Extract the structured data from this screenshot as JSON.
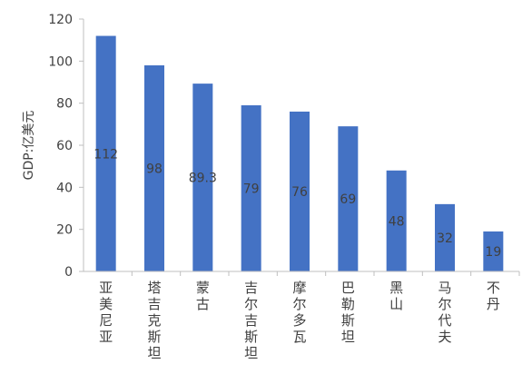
{
  "chart_data": {
    "type": "bar",
    "ylabel": "GDP:亿美元",
    "ylim": [
      0,
      120
    ],
    "yticks": [
      0,
      20,
      40,
      60,
      80,
      100,
      120
    ],
    "grid": false,
    "legend": "none",
    "colors": {
      "bar": "#4472C4",
      "axis": "#bfbfbf",
      "text": "#404040"
    },
    "categories": [
      "亚美尼亚",
      "塔吉克斯坦",
      "蒙古",
      "吉尔吉斯坦",
      "摩尔多瓦",
      "巴勒斯坦",
      "黑山",
      "马尔代夫",
      "不丹"
    ],
    "values": [
      112,
      98,
      89.3,
      79,
      76,
      69,
      48,
      32,
      19
    ],
    "data_labels": [
      "112",
      "98",
      "89.3",
      "79",
      "76",
      "69",
      "48",
      "32",
      "19"
    ]
  }
}
